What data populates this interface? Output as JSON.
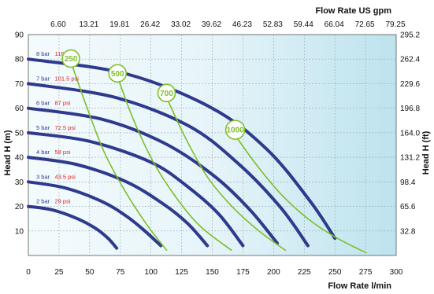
{
  "chart_data": {
    "type": "line",
    "xlabel": "Flow Rate l/min",
    "ylabel": "Head H (m)",
    "y2label": "Head H (ft)",
    "x2label": "Flow Rate US gpm",
    "xlim": [
      0,
      300
    ],
    "ylim": [
      0,
      90
    ],
    "x_ticks": [
      "0",
      "25",
      "50",
      "75",
      "100",
      "125",
      "150",
      "175",
      "200",
      "225",
      "250",
      "275",
      "300"
    ],
    "y_ticks": [
      "10",
      "20",
      "30",
      "40",
      "50",
      "60",
      "70",
      "80",
      "90"
    ],
    "x2_ticks": [
      "6.60",
      "13.21",
      "19.81",
      "26.42",
      "33.02",
      "39.62",
      "46.23",
      "52.83",
      "59.44",
      "66.04",
      "72.65",
      "79.25"
    ],
    "y2_ticks": [
      "32.8",
      "65.6",
      "98.4",
      "131.2",
      "164.0",
      "196.8",
      "229.6",
      "262.4",
      "295.2"
    ],
    "grid": true,
    "colors": {
      "pressure": "#2e3a8c",
      "rpm": "#7cbf2a",
      "psi_label": "#e0202a",
      "background_left": "#f4fbfd",
      "background_right": "#bde3ee"
    },
    "pressure_series": [
      {
        "bar": "2 bar",
        "psi": "29 psi",
        "x": [
          0,
          20,
          40,
          55,
          65,
          72
        ],
        "y": [
          20,
          18.5,
          15,
          11,
          7,
          3
        ]
      },
      {
        "bar": "3 bar",
        "psi": "43.5 psi",
        "x": [
          0,
          30,
          60,
          80,
          95,
          108
        ],
        "y": [
          30,
          27.5,
          22,
          16,
          10,
          4
        ]
      },
      {
        "bar": "4 bar",
        "psi": "58 psi",
        "x": [
          0,
          40,
          80,
          110,
          130,
          146
        ],
        "y": [
          40,
          37,
          30,
          21,
          13,
          4
        ]
      },
      {
        "bar": "5 bar",
        "psi": "72.5 psi",
        "x": [
          0,
          50,
          100,
          130,
          155,
          175
        ],
        "y": [
          50,
          46.5,
          38,
          28,
          17,
          4
        ]
      },
      {
        "bar": "6 bar",
        "psi": "87 psi",
        "x": [
          0,
          60,
          110,
          150,
          180,
          203
        ],
        "y": [
          60,
          55.5,
          46,
          33,
          19,
          5
        ]
      },
      {
        "bar": "7 bar",
        "psi": "101.5 psi",
        "x": [
          0,
          70,
          130,
          170,
          205,
          228
        ],
        "y": [
          70,
          64.5,
          53,
          38,
          20,
          4
        ]
      },
      {
        "bar": "8 bar",
        "psi": "116 psi",
        "x": [
          0,
          80,
          150,
          195,
          230,
          250
        ],
        "y": [
          80,
          74,
          60,
          43,
          22,
          7
        ]
      }
    ],
    "rpm_series": [
      {
        "label": "250",
        "x": [
          36,
          48,
          62,
          78,
          96,
          113
        ],
        "y": [
          77,
          60,
          42,
          27,
          13,
          2
        ]
      },
      {
        "label": "500",
        "x": [
          74,
          86,
          102,
          120,
          140,
          166
        ],
        "y": [
          71,
          55,
          38,
          24,
          12,
          2
        ]
      },
      {
        "label": "700",
        "x": [
          114,
          128,
          146,
          166,
          188,
          210
        ],
        "y": [
          63,
          48,
          32,
          20,
          10,
          2
        ]
      },
      {
        "label": "1000",
        "x": [
          170,
          186,
          206,
          228,
          252,
          276
        ],
        "y": [
          48,
          37,
          25,
          15,
          7,
          1
        ]
      }
    ]
  }
}
